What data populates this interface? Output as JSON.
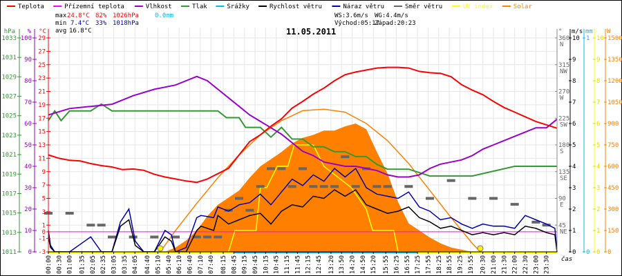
{
  "legend": [
    {
      "label": "Teplota",
      "color": "#ff0000"
    },
    {
      "label": "Přízemní teplota",
      "color": "#ff00ff"
    },
    {
      "label": "Vlhkost",
      "color": "#9900cc"
    },
    {
      "label": "Tlak",
      "color": "#339933"
    },
    {
      "label": "Srážky",
      "color": "#00bbee"
    },
    {
      "label": "Rychlost větru",
      "color": "#000000"
    },
    {
      "label": "Náraz větru",
      "color": "#0000aa"
    },
    {
      "label": "Směr větru",
      "color": "#666666"
    },
    {
      "label": "UV index",
      "color": "#ffff00"
    },
    {
      "label": "Solar",
      "color": "#ff8000"
    }
  ],
  "stats": {
    "max_label": "max",
    "min_label": "min",
    "avg_label": "avg",
    "max_temp": "24.8°C",
    "max_hum": "82%",
    "max_press": "1026hPa",
    "max_rain": "0.0mm",
    "min_temp": "7.4°C",
    "min_hum": "33%",
    "min_press": "1018hPa",
    "avg_temp": "16.8°C"
  },
  "wind_info": {
    "ws": "WS:3.6m/s",
    "wg": "WG:4.4m/s",
    "sunrise": "Východ:05:17",
    "sunset": "Západ:20:23"
  },
  "colors": {
    "temp": "#ff0000",
    "ground_temp": "#ff00ff",
    "humidity": "#9900cc",
    "pressure": "#339933",
    "rain": "#00bbee",
    "wind_speed": "#000000",
    "gust": "#0000aa",
    "wind_dir": "#666666",
    "uv": "#ffff00",
    "solar": "#ff8000",
    "grid": "#e6e6e6"
  },
  "chart_data": {
    "type": "line",
    "title": "11.05.2011",
    "xlabel": "čas",
    "x_ticks": [
      "00:00",
      "00:30",
      "01:00",
      "01:35",
      "02:05",
      "02:35",
      "03:05",
      "03:35",
      "04:05",
      "04:40",
      "05:10",
      "05:40",
      "06:10",
      "06:40",
      "07:10",
      "07:40",
      "08:15",
      "08:45",
      "09:15",
      "09:45",
      "10:15",
      "10:45",
      "11:15",
      "11:45",
      "12:15",
      "12:45",
      "13:20",
      "13:50",
      "14:20",
      "14:50",
      "15:20",
      "15:55",
      "16:25",
      "16:55",
      "17:25",
      "17:55",
      "18:25",
      "18:55",
      "19:25",
      "19:55",
      "20:30",
      "21:00",
      "21:30",
      "22:00",
      "22:30",
      "23:00",
      "23:30"
    ],
    "axes": {
      "pressure": {
        "unit": "hPa",
        "ticks": [
          1011,
          1013,
          1015,
          1017,
          1019,
          1021,
          1023,
          1025,
          1027,
          1029,
          1031,
          1033
        ],
        "range": [
          1011,
          1033
        ]
      },
      "humidity": {
        "unit": "%",
        "ticks": [
          0,
          10,
          20,
          30,
          40,
          50,
          60,
          70,
          80,
          90,
          100
        ],
        "range": [
          0,
          100
        ]
      },
      "temperature": {
        "unit": "°C",
        "ticks": [
          -3,
          -1,
          0,
          1,
          3,
          5,
          7,
          9,
          11,
          13,
          15,
          17,
          19,
          21,
          23,
          25,
          27,
          29
        ],
        "range": [
          -3,
          29
        ]
      },
      "wind_dir": {
        "unit": "°",
        "ticks": [
          {
            "v": 45,
            "l": "NE"
          },
          {
            "v": 90,
            "l": "E"
          },
          {
            "v": 135,
            "l": "SE"
          },
          {
            "v": 180,
            "l": "S"
          },
          {
            "v": 225,
            "l": "SW"
          },
          {
            "v": 270,
            "l": "W"
          },
          {
            "v": 315,
            "l": "NW"
          },
          {
            "v": 360,
            "l": "N"
          }
        ],
        "range": [
          0,
          360
        ]
      },
      "wind_speed": {
        "unit": "m/s",
        "ticks": [
          0,
          1,
          2,
          3,
          4,
          5,
          6,
          7,
          8,
          9,
          10
        ],
        "range": [
          0,
          10
        ]
      },
      "rain": {
        "unit": "mm",
        "ticks": [
          0,
          1
        ],
        "range": [
          0,
          1
        ]
      },
      "uv": {
        "unit": "",
        "ticks": [
          0,
          1,
          2,
          3,
          4,
          5,
          6,
          7,
          8,
          9,
          10
        ],
        "range": [
          0,
          10
        ]
      },
      "solar": {
        "unit": "W",
        "ticks": [
          0,
          150,
          300,
          450,
          600,
          750,
          900,
          1050,
          1200,
          1350,
          1500
        ],
        "range": [
          0,
          1500
        ]
      }
    },
    "series": [
      {
        "name": "Teplota",
        "unit": "°C",
        "x_hours": [
          0,
          0.5,
          1,
          1.5,
          2,
          2.5,
          3,
          3.5,
          4,
          4.5,
          5,
          5.5,
          6,
          6.5,
          7,
          7.5,
          8,
          8.5,
          9,
          9.5,
          10,
          10.5,
          11,
          11.5,
          12,
          12.5,
          13,
          13.5,
          14,
          14.5,
          15,
          15.5,
          16,
          16.5,
          17,
          17.5,
          18,
          18.5,
          19,
          19.5,
          20,
          20.5,
          21,
          21.5,
          22,
          22.5,
          23,
          23.5,
          24
        ],
        "values": [
          11.5,
          11.0,
          10.7,
          10.6,
          10.2,
          9.9,
          9.7,
          9.3,
          9.4,
          9.2,
          8.6,
          8.2,
          7.9,
          7.6,
          7.4,
          7.9,
          8.7,
          9.5,
          11.5,
          13.5,
          14.5,
          15.8,
          16.9,
          18.5,
          19.5,
          20.6,
          21.5,
          22.6,
          23.5,
          23.9,
          24.2,
          24.5,
          24.6,
          24.6,
          24.5,
          24.0,
          23.8,
          23.7,
          23.2,
          22.0,
          21.2,
          20.5,
          19.5,
          18.6,
          17.9,
          17.2,
          16.5,
          16.0,
          15.5
        ]
      },
      {
        "name": "Přízemní teplota",
        "unit": "°C",
        "x_hours": [
          0,
          24
        ],
        "values": [
          0.0,
          0.0
        ]
      },
      {
        "name": "Vlhkost",
        "unit": "%",
        "x_hours": [
          0,
          1,
          2,
          3,
          3.5,
          4,
          5,
          6,
          7,
          7.5,
          8,
          8.5,
          9,
          9.5,
          10,
          11,
          12,
          12.5,
          13,
          13.5,
          14,
          14.5,
          15,
          15.5,
          16,
          16.5,
          17,
          17.5,
          18,
          18.5,
          19,
          19.5,
          20,
          20.5,
          21,
          21.5,
          22,
          22.5,
          23,
          23.5,
          24
        ],
        "values": [
          64,
          67,
          68,
          69,
          71,
          73,
          76,
          78,
          82,
          80,
          76,
          72,
          68,
          64,
          61,
          55,
          47,
          45,
          42,
          41,
          40,
          40,
          39,
          38,
          36,
          35,
          35,
          36,
          39,
          41,
          42,
          43,
          45,
          48,
          50,
          52,
          54,
          56,
          58,
          58,
          62
        ]
      },
      {
        "name": "Tlak",
        "unit": "hPa",
        "x_hours": [
          0,
          0.3,
          0.6,
          1,
          2,
          2.5,
          3,
          4,
          8,
          8.4,
          9,
          9.3,
          10,
          10.5,
          11,
          11.5,
          12,
          12.5,
          13,
          13.5,
          14,
          14.5,
          15,
          15.5,
          16,
          17,
          18,
          18.5,
          19,
          20,
          22,
          24
        ],
        "values": [
          1024.5,
          1025.5,
          1024.5,
          1025.5,
          1025.5,
          1026.2,
          1025.5,
          1025.5,
          1025.5,
          1024.8,
          1024.8,
          1023.8,
          1023.8,
          1022.8,
          1023.8,
          1022.6,
          1022.6,
          1021.8,
          1021.8,
          1021.3,
          1021.3,
          1020.8,
          1020.8,
          1020.0,
          1019.5,
          1019.5,
          1018.8,
          1018.8,
          1018.8,
          1018.8,
          1019.8,
          1019.8
        ]
      },
      {
        "name": "Srážky",
        "unit": "mm",
        "x_hours": [
          0,
          24
        ],
        "values": [
          0.0,
          0.0
        ]
      },
      {
        "name": "Rychlost větru",
        "unit": "m/s",
        "x_hours": [
          0,
          0.1,
          0.3,
          1,
          2,
          2.5,
          3,
          3.4,
          3.8,
          4.1,
          4.5,
          5,
          5.5,
          5.8,
          6,
          6.5,
          7,
          7.2,
          7.8,
          8,
          8.5,
          9,
          9.5,
          10,
          10.5,
          11,
          11.5,
          12,
          12.5,
          13,
          13.5,
          14,
          14.5,
          15,
          15.5,
          16,
          16.5,
          17,
          17.5,
          18,
          18.5,
          19,
          19.5,
          20,
          20.5,
          21,
          21.5,
          22,
          22.5,
          23,
          23.5,
          23.9,
          24
        ],
        "values": [
          0.7,
          0.2,
          0,
          0,
          0,
          0,
          0,
          1.2,
          1.5,
          0.3,
          0,
          0,
          0.7,
          0.5,
          0,
          0,
          1.0,
          1.2,
          1.0,
          1.7,
          1.3,
          1.5,
          1.7,
          1.8,
          1.3,
          1.9,
          2.2,
          2.1,
          2.6,
          2.5,
          2.9,
          2.6,
          2.9,
          2.2,
          2.0,
          1.8,
          1.9,
          2.1,
          1.6,
          1.4,
          1.1,
          1.2,
          1.0,
          0.8,
          0.9,
          0.8,
          0.9,
          0.8,
          1.2,
          1.1,
          0.9,
          0.8,
          0.0
        ]
      },
      {
        "name": "Náraz větru",
        "unit": "m/s",
        "x_hours": [
          0,
          0.1,
          0.3,
          1,
          2,
          2.5,
          3,
          3.4,
          3.8,
          4.1,
          4.5,
          5,
          5.5,
          5.8,
          6,
          6.5,
          7,
          7.2,
          7.8,
          8,
          8.5,
          9,
          9.5,
          10,
          10.5,
          11,
          11.5,
          12,
          12.5,
          13,
          13.5,
          14,
          14.5,
          15,
          15.5,
          16,
          16.5,
          17,
          17.5,
          18,
          18.5,
          19,
          19.5,
          20,
          20.5,
          21,
          21.5,
          22,
          22.5,
          23,
          23.5,
          23.9,
          24
        ],
        "values": [
          1.0,
          0.3,
          0,
          0,
          0.7,
          0,
          0,
          1.4,
          2.0,
          0.5,
          0,
          0,
          1.0,
          0.8,
          0,
          0.2,
          1.6,
          1.7,
          1.6,
          2.1,
          1.9,
          2.2,
          2.3,
          2.7,
          2.2,
          2.8,
          3.4,
          3.1,
          3.6,
          3.3,
          3.9,
          3.5,
          3.9,
          3.0,
          2.7,
          2.6,
          2.5,
          2.8,
          2.1,
          1.9,
          1.5,
          1.6,
          1.3,
          1.1,
          1.3,
          1.2,
          1.2,
          1.1,
          1.7,
          1.5,
          1.3,
          1.1,
          0.0
        ]
      },
      {
        "name": "Směr větru",
        "unit": "°",
        "x_hours": [
          0,
          1,
          2,
          2.5,
          3,
          4,
          5,
          6,
          7,
          7.5,
          8,
          8.5,
          9,
          9.5,
          10,
          10.5,
          11,
          11.5,
          12,
          12.5,
          13,
          13.5,
          14,
          14.5,
          15,
          15.5,
          16,
          17,
          18,
          19,
          20,
          21,
          22,
          23,
          23.5
        ],
        "values": [
          65,
          65,
          45,
          45,
          25,
          25,
          25,
          25,
          25,
          25,
          25,
          70,
          90,
          70,
          110,
          140,
          140,
          110,
          140,
          110,
          110,
          110,
          160,
          110,
          140,
          110,
          110,
          110,
          90,
          120,
          90,
          90,
          80,
          50,
          45
        ]
      },
      {
        "name": "UV index",
        "unit": "",
        "x_hours": [
          0,
          7,
          7.3,
          8.5,
          8.8,
          9.8,
          10,
          10.3,
          10.8,
          11.3,
          11.6,
          12.5,
          13,
          14.3,
          15.0,
          15.3,
          16.3,
          16.5,
          17,
          24
        ],
        "values": [
          0,
          0,
          0,
          0,
          1,
          1,
          3,
          3,
          4,
          4,
          5,
          5,
          4,
          3,
          2,
          1,
          1,
          0,
          0,
          0
        ]
      },
      {
        "name": "Solar",
        "unit": "W/m²",
        "x_hours": [
          0,
          5.5,
          6,
          6.5,
          7,
          7.5,
          8,
          8.5,
          9,
          9.5,
          10,
          10.5,
          11,
          11.5,
          12,
          12.5,
          13,
          13.5,
          14,
          14.5,
          15,
          15.5,
          16,
          16.5,
          17,
          17.5,
          18,
          18.5,
          19,
          20,
          24
        ],
        "values": [
          0,
          0,
          30,
          80,
          150,
          250,
          330,
          380,
          430,
          520,
          600,
          650,
          700,
          760,
          800,
          820,
          850,
          850,
          880,
          900,
          860,
          700,
          550,
          350,
          200,
          150,
          100,
          60,
          30,
          0,
          0
        ]
      },
      {
        "name": "Solar theoretical",
        "unit": "W/m²",
        "x_hours": [
          5.28,
          6,
          7,
          8,
          9,
          10,
          11,
          12,
          13,
          14,
          15,
          16,
          17,
          18,
          19,
          20,
          20.38
        ],
        "values": [
          0,
          150,
          340,
          520,
          680,
          820,
          920,
          990,
          1000,
          980,
          900,
          780,
          620,
          430,
          240,
          60,
          0
        ]
      }
    ],
    "markers": [
      {
        "name": "sunrise",
        "x_hours": 5.28
      },
      {
        "name": "sunset",
        "x_hours": 20.38
      }
    ]
  }
}
